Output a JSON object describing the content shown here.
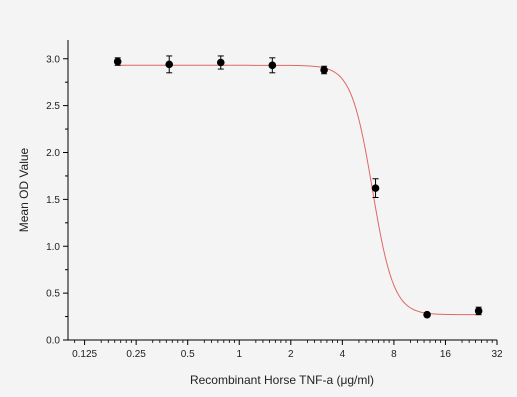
{
  "chart_data": {
    "type": "scatter",
    "title": "",
    "xlabel": "Recombinant Horse TNF-a (μg/ml)",
    "ylabel": "Mean OD Value",
    "x_scale": "log2",
    "xlim": [
      0.1,
      32
    ],
    "ylim": [
      0,
      3.2
    ],
    "x_ticks": [
      0.125,
      0.25,
      0.5,
      1,
      2,
      4,
      8,
      16,
      32
    ],
    "x_tick_labels": [
      "0.125",
      "0.25",
      "0.5",
      "1",
      "2",
      "4",
      "8",
      "16",
      "32"
    ],
    "y_ticks": [
      0,
      0.5,
      1,
      1.5,
      2,
      2.5,
      3
    ],
    "y_tick_labels": [
      "0.0",
      "0.5",
      "1.0",
      "1.5",
      "2.0",
      "2.5",
      "3.0"
    ],
    "grid": false,
    "series": [
      {
        "points": [
          {
            "x": 0.195,
            "y": 2.97,
            "err": 0.04
          },
          {
            "x": 0.39,
            "y": 2.94,
            "err": 0.09
          },
          {
            "x": 0.78,
            "y": 2.96,
            "err": 0.07
          },
          {
            "x": 1.56,
            "y": 2.93,
            "err": 0.08
          },
          {
            "x": 3.13,
            "y": 2.88,
            "err": 0.04
          },
          {
            "x": 6.25,
            "y": 1.62,
            "err": 0.1
          },
          {
            "x": 12.5,
            "y": 0.27,
            "err": 0.02
          },
          {
            "x": 25,
            "y": 0.31,
            "err": 0.04
          }
        ],
        "marker_color": "#000000"
      }
    ],
    "fit_curve": {
      "type": "4PL",
      "top": 2.93,
      "bottom": 0.27,
      "ec50": 6.0,
      "hill": 7.0,
      "color": "#e06666"
    }
  }
}
